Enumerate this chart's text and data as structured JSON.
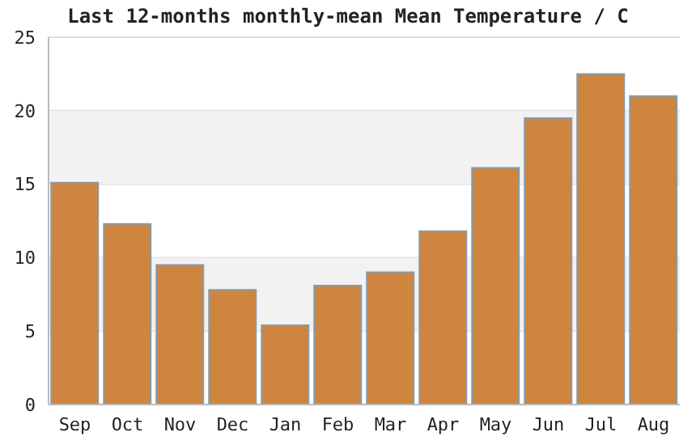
{
  "chart_data": {
    "type": "bar",
    "title": "Last 12-months monthly-mean Mean Temperature / C",
    "categories": [
      "Sep",
      "Oct",
      "Nov",
      "Dec",
      "Jan",
      "Feb",
      "Mar",
      "Apr",
      "May",
      "Jun",
      "Jul",
      "Aug"
    ],
    "values": [
      15.1,
      12.3,
      9.5,
      7.8,
      5.4,
      8.1,
      9.0,
      11.8,
      16.1,
      19.5,
      22.5,
      21.0
    ],
    "color": "#cd853f",
    "ylim": [
      0,
      25
    ],
    "yticks": [
      0,
      5,
      10,
      15,
      20,
      25
    ],
    "grid": "y",
    "bands": [
      {
        "axis": "y",
        "from": 5,
        "to": 10,
        "color": "#f2f2f2"
      },
      {
        "axis": "y",
        "from": 15,
        "to": 20,
        "color": "#f2f2f2"
      }
    ]
  }
}
